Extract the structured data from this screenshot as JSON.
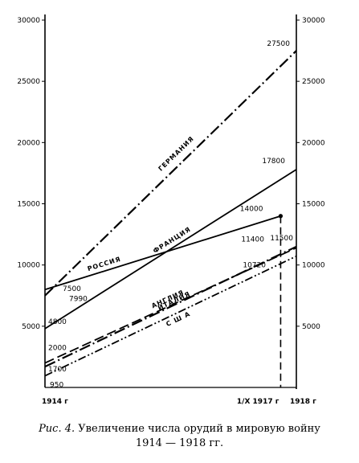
{
  "chart_data": {
    "type": "line",
    "title": "",
    "xlabel": "",
    "ylabel": "",
    "ylim": [
      0,
      30000
    ],
    "left_ticks": [
      "5000",
      "10000",
      "15000",
      "20000",
      "25000",
      "30000"
    ],
    "right_ticks": [
      "5000",
      "10000",
      "15000",
      "20000",
      "25000",
      "30000"
    ],
    "x_labels": [
      {
        "text": "1914 г",
        "x": 1914.0
      },
      {
        "text": "1/X 1917 г",
        "x": 1917.75
      },
      {
        "text": "1918 г",
        "x": 1918.0
      }
    ],
    "series": [
      {
        "name": "ГЕРМАНИЯ",
        "style": "dash-dot",
        "points": [
          {
            "x": 1914.0,
            "y": 7500
          },
          {
            "x": 1918.0,
            "y": 27500
          }
        ],
        "labels": [
          "7500",
          "27500"
        ]
      },
      {
        "name": "ФРАНЦИЯ",
        "style": "solid",
        "points": [
          {
            "x": 1914.0,
            "y": 4800
          },
          {
            "x": 1918.0,
            "y": 17800
          }
        ],
        "labels": [
          "4800",
          "17800"
        ]
      },
      {
        "name": "РОССИЯ",
        "style": "solid",
        "end_marker": true,
        "points": [
          {
            "x": 1914.0,
            "y": 7990
          },
          {
            "x": 1917.75,
            "y": 14000
          }
        ],
        "labels": [
          "7990",
          "14000"
        ]
      },
      {
        "name": "АНГЛИЯ",
        "style": "long-dash",
        "points": [
          {
            "x": 1914.0,
            "y": 2000
          },
          {
            "x": 1918.0,
            "y": 11400
          }
        ],
        "labels": [
          "2000",
          "11400"
        ]
      },
      {
        "name": "ИТАЛИЯ",
        "style": "dash-dot",
        "points": [
          {
            "x": 1914.0,
            "y": 1700
          },
          {
            "x": 1918.0,
            "y": 11500
          }
        ],
        "labels": [
          "1700",
          "11500"
        ]
      },
      {
        "name": "С Ш А",
        "style": "dash-dot-dot",
        "points": [
          {
            "x": 1914.0,
            "y": 950
          },
          {
            "x": 1918.0,
            "y": 10720
          }
        ],
        "labels": [
          "950",
          "10720"
        ]
      }
    ]
  },
  "caption": {
    "figure": "Рис. 4.",
    "text": "Увеличение числа орудий в мировую войну",
    "years": "1914 — 1918 гг."
  }
}
